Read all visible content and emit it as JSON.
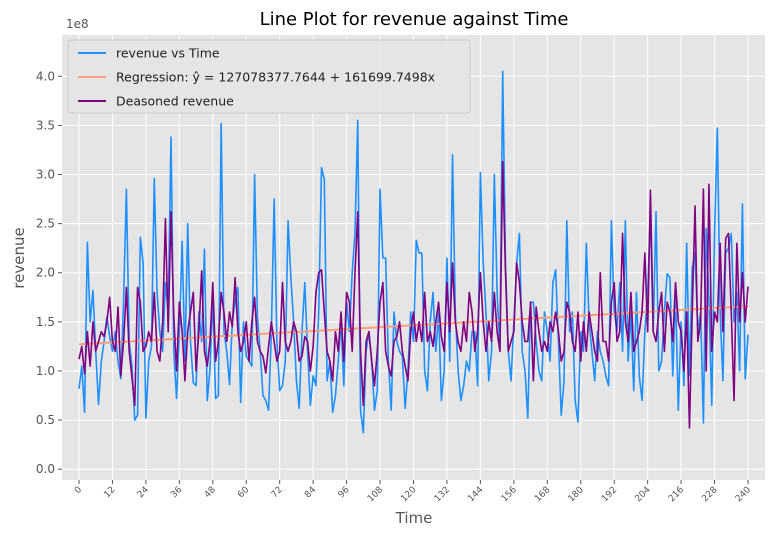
{
  "chart_data": {
    "type": "line",
    "title": "Line Plot for revenue against Time",
    "xlabel": "Time",
    "ylabel": "revenue",
    "y_offset_label": "1e8",
    "x": [
      0,
      1,
      2,
      3,
      4,
      5,
      6,
      7,
      8,
      9,
      10,
      11,
      12,
      13,
      14,
      15,
      16,
      17,
      18,
      19,
      20,
      21,
      22,
      23,
      24,
      25,
      26,
      27,
      28,
      29,
      30,
      31,
      32,
      33,
      34,
      35,
      36,
      37,
      38,
      39,
      40,
      41,
      42,
      43,
      44,
      45,
      46,
      47,
      48,
      49,
      50,
      51,
      52,
      53,
      54,
      55,
      56,
      57,
      58,
      59,
      60,
      61,
      62,
      63,
      64,
      65,
      66,
      67,
      68,
      69,
      70,
      71,
      72,
      73,
      74,
      75,
      76,
      77,
      78,
      79,
      80,
      81,
      82,
      83,
      84,
      85,
      86,
      87,
      88,
      89,
      90,
      91,
      92,
      93,
      94,
      95,
      96,
      97,
      98,
      99,
      100,
      101,
      102,
      103,
      104,
      105,
      106,
      107,
      108,
      109,
      110,
      111,
      112,
      113,
      114,
      115,
      116,
      117,
      118,
      119,
      120,
      121,
      122,
      123,
      124,
      125,
      126,
      127,
      128,
      129,
      130,
      131,
      132,
      133,
      134,
      135,
      136,
      137,
      138,
      139,
      140,
      141,
      142,
      143,
      144,
      145,
      146,
      147,
      148,
      149,
      150,
      151,
      152,
      153,
      154,
      155,
      156,
      157,
      158,
      159,
      160,
      161,
      162,
      163,
      164,
      165,
      166,
      167,
      168,
      169,
      170,
      171,
      172,
      173,
      174,
      175,
      176,
      177,
      178,
      179,
      180,
      181,
      182,
      183,
      184,
      185,
      186,
      187,
      188,
      189,
      190,
      191,
      192,
      193,
      194,
      195,
      196,
      197,
      198,
      199,
      200,
      201,
      202,
      203,
      204,
      205,
      206,
      207,
      208,
      209,
      210,
      211,
      212,
      213,
      214,
      215,
      216,
      217,
      218,
      219,
      220,
      221,
      222,
      223,
      224,
      225,
      226,
      227,
      228,
      229,
      230,
      231,
      232,
      233,
      234,
      235,
      236,
      237,
      238,
      239,
      240
    ],
    "series": [
      {
        "name": "revenue vs Time",
        "color": "#1e90ff",
        "values": [
          0.82,
          1.05,
          0.58,
          2.31,
          1.5,
          1.82,
          1.2,
          0.66,
          1.1,
          1.3,
          1.55,
          1.35,
          1.2,
          1.4,
          1.1,
          0.92,
          1.72,
          2.85,
          1.3,
          1.05,
          0.5,
          0.55,
          2.36,
          2.1,
          0.52,
          1.1,
          1.25,
          2.96,
          1.8,
          1.4,
          1.2,
          1.9,
          1.6,
          3.38,
          1.2,
          0.72,
          1.4,
          2.32,
          1.1,
          2.5,
          1.3,
          0.88,
          0.85,
          1.6,
          1.3,
          2.24,
          0.7,
          1.02,
          1.75,
          0.72,
          0.75,
          3.52,
          1.4,
          1.2,
          0.86,
          1.5,
          1.7,
          1.85,
          0.68,
          1.5,
          1.15,
          1.1,
          1.05,
          3.0,
          1.55,
          1.2,
          0.75,
          0.7,
          0.6,
          1.38,
          2.75,
          1.3,
          0.8,
          0.85,
          1.1,
          2.53,
          1.95,
          1.5,
          0.9,
          0.62,
          1.4,
          1.9,
          1.2,
          0.65,
          0.95,
          0.85,
          1.6,
          3.07,
          2.95,
          0.9,
          1.1,
          0.58,
          0.75,
          1.1,
          1.5,
          0.85,
          1.7,
          1.4,
          2.0,
          2.4,
          3.55,
          0.6,
          0.37,
          1.2,
          1.4,
          1.1,
          0.6,
          0.8,
          2.85,
          2.15,
          2.15,
          1.1,
          0.6,
          1.6,
          1.3,
          1.2,
          1.15,
          0.62,
          1.0,
          1.6,
          1.3,
          2.33,
          2.2,
          2.2,
          1.0,
          0.8,
          1.5,
          1.8,
          1.2,
          1.6,
          0.7,
          1.0,
          2.15,
          1.1,
          3.2,
          1.6,
          1.0,
          0.7,
          0.85,
          1.1,
          1.0,
          1.4,
          1.4,
          0.85,
          3.02,
          2.1,
          1.6,
          0.9,
          1.2,
          3.0,
          1.8,
          1.2,
          4.05,
          2.1,
          1.2,
          0.9,
          1.5,
          2.1,
          2.4,
          1.2,
          1.0,
          0.52,
          1.7,
          1.7,
          1.3,
          1.0,
          0.9,
          1.6,
          1.4,
          1.1,
          1.9,
          2.03,
          1.3,
          0.55,
          0.9,
          2.53,
          1.4,
          1.6,
          0.7,
          0.48,
          1.4,
          1.2,
          2.3,
          1.5,
          1.2,
          0.9,
          1.4,
          1.2,
          1.1,
          0.95,
          0.85,
          2.53,
          1.6,
          1.4,
          1.9,
          1.2,
          2.53,
          1.1,
          1.6,
          0.8,
          1.8,
          0.95,
          0.7,
          1.4,
          1.8,
          2.62,
          1.4,
          2.62,
          1.0,
          1.1,
          1.6,
          1.99,
          1.95,
          0.95,
          1.8,
          0.6,
          1.5,
          0.85,
          2.3,
          0.95,
          2.05,
          2.2,
          1.4,
          1.6,
          0.47,
          2.45,
          1.7,
          0.65,
          2.4,
          3.47,
          1.6,
          0.9,
          2.2,
          2.25,
          2.4,
          1.5,
          1.8,
          1.0,
          2.7,
          0.92,
          1.37
        ]
      },
      {
        "name": "Regression: ŷ = 127078377.7644 + 161699.7498x",
        "color": "#ffa07a",
        "x": [
          0,
          240
        ],
        "values": [
          1.271,
          1.659
        ]
      },
      {
        "name": "Deasoned revenue",
        "color": "#800080",
        "values": [
          1.12,
          1.25,
          0.97,
          1.4,
          1.05,
          1.5,
          1.2,
          1.3,
          1.4,
          1.35,
          1.5,
          1.75,
          1.3,
          1.2,
          1.65,
          0.95,
          1.3,
          1.85,
          1.2,
          0.93,
          0.65,
          1.85,
          1.7,
          1.2,
          1.25,
          1.4,
          1.3,
          1.8,
          1.2,
          1.1,
          1.5,
          2.55,
          1.4,
          2.62,
          1.55,
          1.0,
          1.7,
          1.4,
          0.9,
          1.4,
          1.6,
          1.8,
          1.0,
          1.4,
          2.02,
          1.2,
          1.05,
          1.3,
          1.9,
          1.1,
          1.3,
          1.8,
          1.6,
          1.3,
          1.6,
          1.45,
          1.95,
          1.4,
          1.2,
          1.3,
          1.5,
          1.1,
          1.5,
          1.75,
          1.3,
          1.2,
          1.15,
          0.98,
          1.25,
          1.5,
          1.3,
          1.1,
          1.2,
          1.9,
          1.3,
          1.2,
          1.3,
          1.5,
          1.4,
          1.1,
          1.15,
          1.35,
          1.3,
          1.0,
          1.25,
          1.8,
          2.0,
          2.03,
          1.6,
          1.2,
          1.1,
          0.9,
          1.4,
          1.2,
          1.6,
          1.1,
          1.8,
          1.7,
          1.2,
          2.0,
          2.62,
          1.2,
          0.65,
          1.3,
          1.4,
          1.1,
          0.85,
          1.2,
          1.7,
          1.9,
          1.2,
          1.05,
          0.95,
          1.3,
          1.35,
          1.5,
          1.2,
          1.05,
          0.9,
          1.4,
          1.6,
          1.3,
          1.5,
          1.3,
          1.8,
          1.3,
          1.4,
          1.25,
          1.5,
          1.7,
          1.35,
          1.2,
          1.9,
          1.4,
          2.1,
          1.5,
          1.3,
          1.2,
          1.5,
          1.3,
          1.8,
          1.6,
          1.2,
          1.4,
          2.0,
          1.5,
          1.2,
          1.5,
          1.3,
          1.8,
          1.4,
          1.2,
          3.13,
          2.0,
          1.2,
          1.3,
          1.4,
          2.1,
          1.9,
          1.5,
          1.3,
          1.3,
          1.7,
          0.9,
          1.65,
          1.4,
          1.2,
          1.3,
          1.2,
          1.5,
          1.4,
          1.6,
          1.4,
          1.1,
          1.2,
          1.7,
          1.6,
          1.3,
          1.2,
          1.6,
          1.1,
          1.5,
          1.2,
          1.6,
          1.4,
          1.2,
          1.1,
          2.0,
          1.3,
          1.3,
          1.1,
          1.7,
          1.9,
          1.3,
          1.4,
          2.4,
          1.5,
          1.3,
          1.8,
          1.2,
          1.3,
          1.4,
          1.6,
          2.2,
          1.4,
          2.84,
          1.4,
          1.3,
          1.6,
          1.8,
          1.2,
          1.7,
          1.6,
          1.3,
          1.9,
          1.5,
          1.4,
          1.0,
          1.6,
          0.42,
          1.6,
          2.68,
          1.3,
          1.5,
          2.85,
          1.0,
          2.9,
          1.2,
          1.6,
          1.5,
          2.3,
          1.4,
          2.35,
          2.4,
          1.6,
          0.7,
          2.3,
          1.5,
          2.0,
          1.5,
          1.86
        ]
      }
    ],
    "xlim": [
      -6.1,
      246.1
    ],
    "xticks": [
      0,
      12,
      24,
      36,
      48,
      60,
      72,
      84,
      96,
      108,
      120,
      132,
      144,
      156,
      168,
      180,
      192,
      204,
      216,
      228,
      240
    ],
    "ylim": [
      -0.11,
      4.42
    ],
    "yticks": [
      {
        "value": 0,
        "label": "0.0"
      },
      0.5,
      {
        "value": 1,
        "label": "1.0"
      },
      1.5,
      {
        "value": 2,
        "label": "2.0"
      },
      2.5,
      {
        "value": 3,
        "label": "3.0"
      },
      3.5,
      {
        "value": 4,
        "label": "4.0"
      }
    ],
    "grid": true,
    "legend": "upper left"
  }
}
